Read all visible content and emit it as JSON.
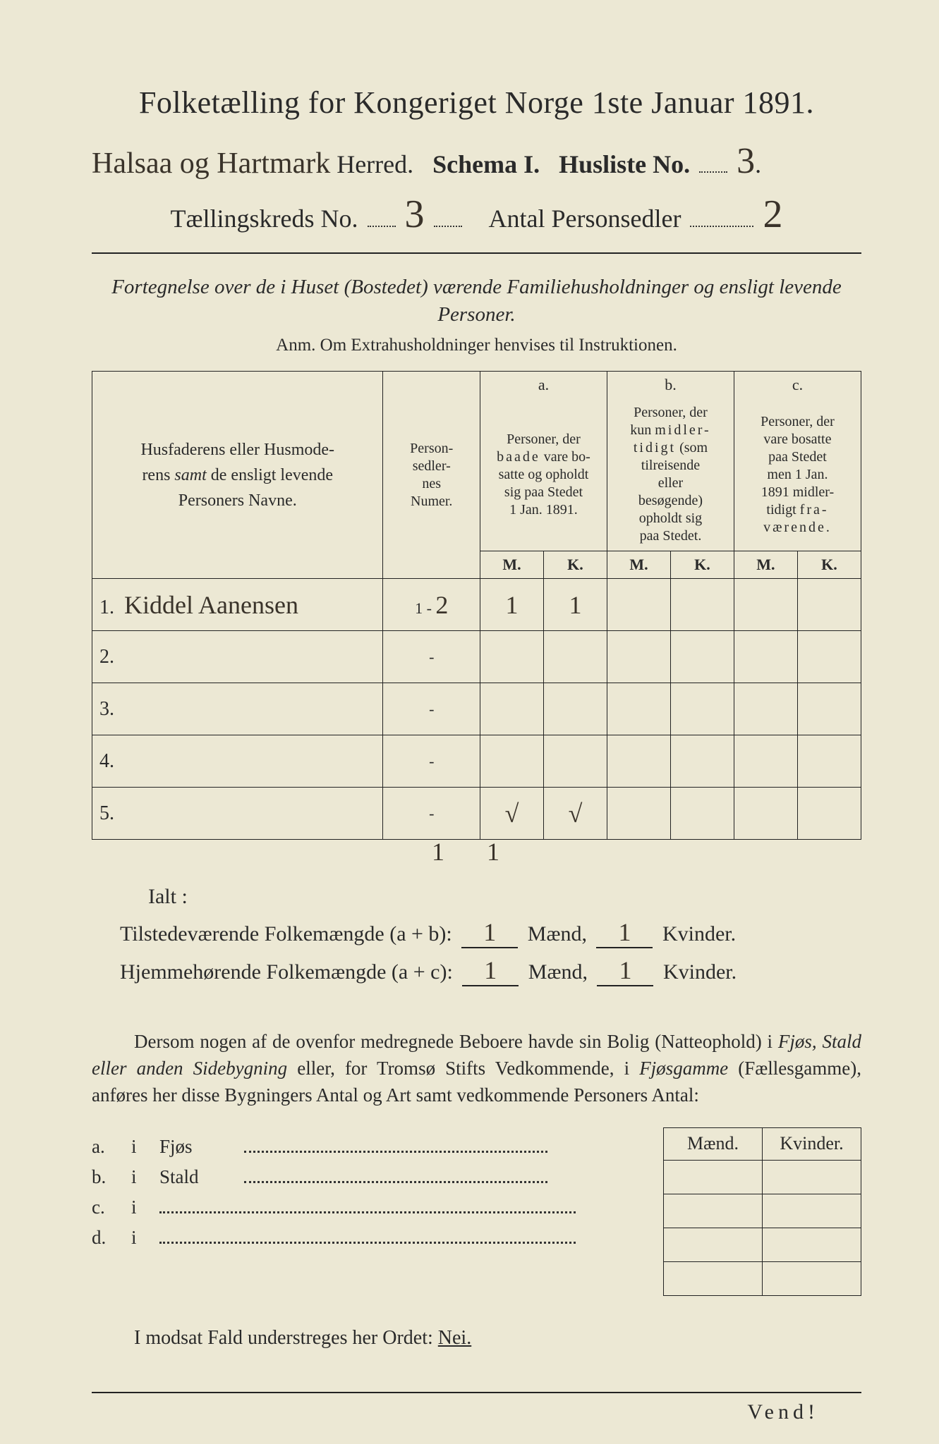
{
  "title": "Folketælling for Kongeriget Norge 1ste Januar 1891.",
  "header": {
    "herred_handwritten": "Halsaa og Hartmark",
    "herred_label": "Herred.",
    "schema_label": "Schema I.",
    "husliste_label": "Husliste No.",
    "husliste_no": "3",
    "kreds_label": "Tællingskreds No.",
    "kreds_no": "3",
    "antal_label": "Antal Personsedler",
    "antal_no": "2"
  },
  "subtitle": "Fortegnelse over de i Huset (Bostedet) værende Familiehusholdninger og ensligt levende Personer.",
  "anm": "Anm.  Om Extrahusholdninger henvises til Instruktionen.",
  "table": {
    "col_name": "Husfaderens eller Husmoderens samt de ensligt levende Personers Navne.",
    "col_num": "Person-sedler-nes Numer.",
    "col_a_top": "a.",
    "col_a": "Personer, der baade vare bosatte og opholdt sig paa Stedet 1 Jan. 1891.",
    "col_b_top": "b.",
    "col_b": "Personer, der kun midlertidigt (som tilreisende eller besøgende) opholdt sig paa Stedet.",
    "col_c_top": "c.",
    "col_c": "Personer, der vare bosatte paa Stedet men 1 Jan. 1891 midlertidigt fraværende.",
    "m": "M.",
    "k": "K.",
    "rows": [
      {
        "n": "1.",
        "name": "Kiddel Aanensen",
        "num": "1 - 2",
        "a_m": "1",
        "a_k": "1",
        "b_m": "",
        "b_k": "",
        "c_m": "",
        "c_k": ""
      },
      {
        "n": "2.",
        "name": "",
        "num": "-",
        "a_m": "",
        "a_k": "",
        "b_m": "",
        "b_k": "",
        "c_m": "",
        "c_k": ""
      },
      {
        "n": "3.",
        "name": "",
        "num": "-",
        "a_m": "",
        "a_k": "",
        "b_m": "",
        "b_k": "",
        "c_m": "",
        "c_k": ""
      },
      {
        "n": "4.",
        "name": "",
        "num": "-",
        "a_m": "",
        "a_k": "",
        "b_m": "",
        "b_k": "",
        "c_m": "",
        "c_k": ""
      },
      {
        "n": "5.",
        "name": "",
        "num": "-",
        "a_m": "√",
        "a_k": "√",
        "b_m": "",
        "b_k": "",
        "c_m": "",
        "c_k": ""
      }
    ],
    "below_a_m": "1",
    "below_a_k": "1"
  },
  "ialt": "Ialt :",
  "sum1": {
    "label": "Tilstedeværende Folkemængde (a + b):",
    "maend": "1",
    "m_label": "Mænd,",
    "kvinder": "1",
    "k_label": "Kvinder."
  },
  "sum2": {
    "label": "Hjemmehørende Folkemængde (a + c):",
    "maend": "1",
    "m_label": "Mænd,",
    "kvinder": "1",
    "k_label": "Kvinder."
  },
  "para": {
    "t1": "Dersom nogen af de ovenfor medregnede Beboere havde sin Bolig (Natteophold) i ",
    "i1": "Fjøs, Stald eller anden Sidebygning",
    "t2": " eller, for Tromsø Stifts Vedkommende, i ",
    "i2": "Fjøsgamme",
    "t3": " (Fællesgamme), anføres her disse Bygningers Antal og Art samt vedkommende Personers Antal:"
  },
  "lower": {
    "maend": "Mænd.",
    "kvinder": "Kvinder.",
    "rows": [
      {
        "a": "a.",
        "i": "i",
        "cat": "Fjøs"
      },
      {
        "a": "b.",
        "i": "i",
        "cat": "Stald"
      },
      {
        "a": "c.",
        "i": "i",
        "cat": ""
      },
      {
        "a": "d.",
        "i": "i",
        "cat": ""
      }
    ]
  },
  "nei_line": {
    "pre": "I modsat Fald understreges her Ordet: ",
    "nei": "Nei."
  },
  "vend": "Vend!"
}
